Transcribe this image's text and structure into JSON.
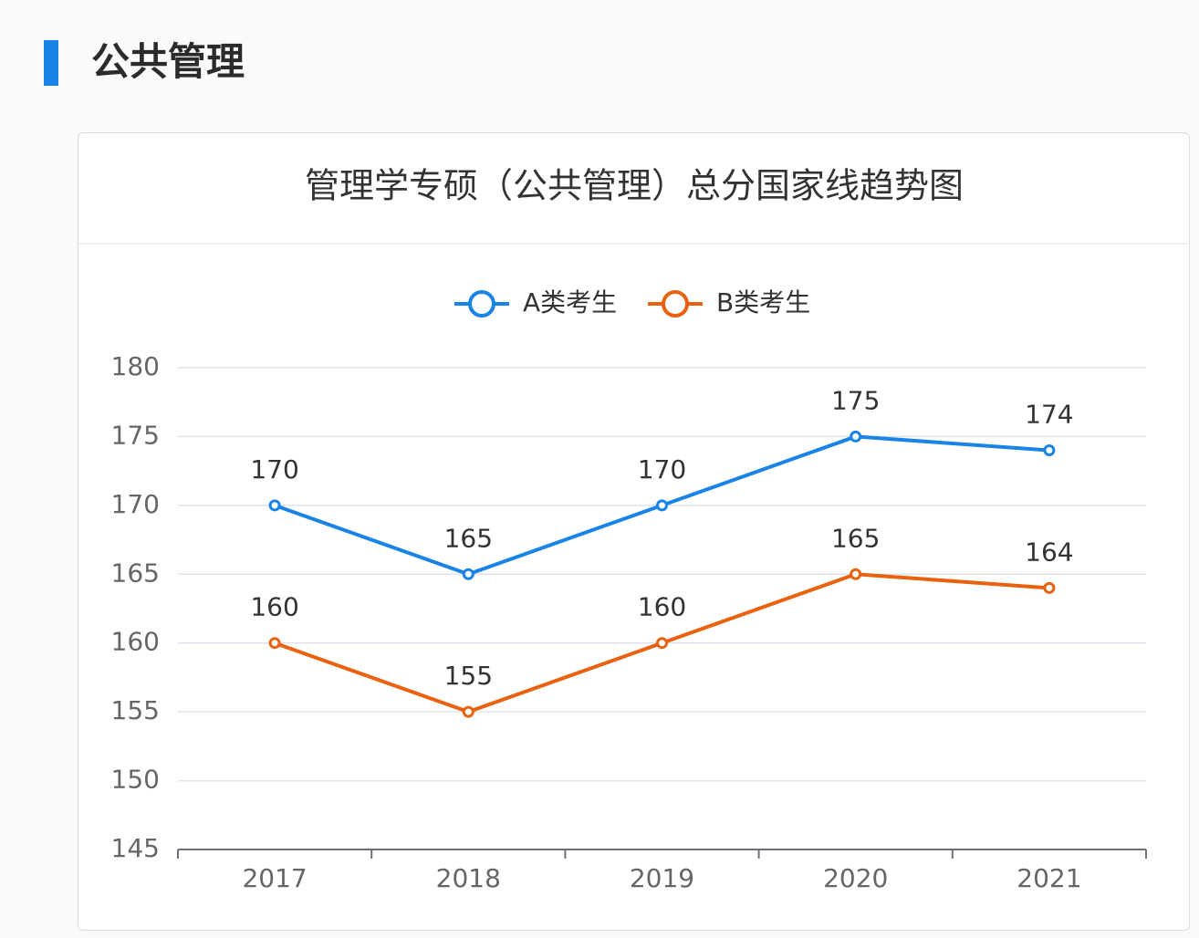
{
  "header": {
    "title": "公共管理"
  },
  "chart_data": {
    "type": "line",
    "title": "管理学专硕（公共管理）总分国家线趋势图",
    "categories": [
      "2017",
      "2018",
      "2019",
      "2020",
      "2021"
    ],
    "series": [
      {
        "name": "A类考生",
        "color": "#1a84e6",
        "values": [
          170,
          165,
          170,
          175,
          174
        ]
      },
      {
        "name": "B类考生",
        "color": "#e8620f",
        "values": [
          160,
          155,
          160,
          165,
          164
        ]
      }
    ],
    "ylim": [
      145,
      180
    ],
    "yticks": [
      145,
      150,
      155,
      160,
      165,
      170,
      175,
      180
    ],
    "grid": true,
    "legend": "top",
    "data_labels": true
  }
}
